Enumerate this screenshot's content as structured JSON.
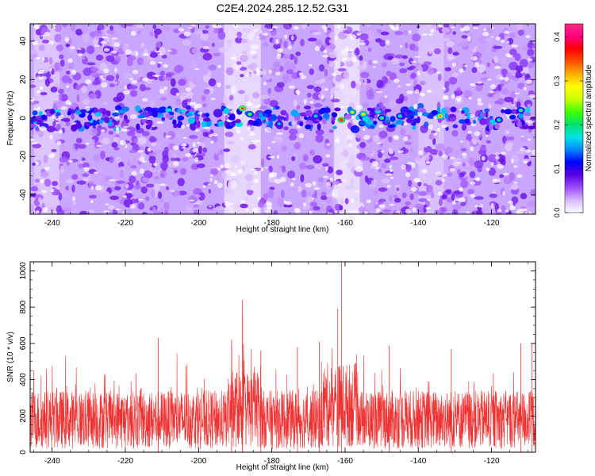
{
  "title": "C2E4.2024.285.12.52.G31",
  "chart_data": [
    {
      "type": "heatmap",
      "xlabel": "Height of straight line (km)",
      "ylabel": "Frequency (Hz)",
      "xlim": [
        -246,
        -108
      ],
      "ylim": [
        -50,
        49
      ],
      "xticks": [
        -240,
        -220,
        -200,
        -180,
        -160,
        -140,
        -120
      ],
      "yticks": [
        -40,
        -20,
        0,
        20,
        40
      ],
      "colorbar": {
        "label": "Normalized spectral amplitude",
        "range": [
          0,
          0.43
        ],
        "ticks": [
          0.0,
          0.1,
          0.2,
          0.3,
          0.4
        ],
        "tick_labels": [
          "0.0",
          "0.1",
          "0.2",
          "0.3",
          "0.4"
        ],
        "colormap": [
          "#ffffff",
          "#d9b8ff",
          "#9a4cff",
          "#5a00e0",
          "#0000ff",
          "#0088ff",
          "#00e5e5",
          "#00e070",
          "#40ff00",
          "#c8ff00",
          "#ffff00",
          "#ffb000",
          "#ff5000",
          "#ff0000",
          "#ff0080",
          "#ff2a80"
        ]
      },
      "features": [
        {
          "description_free": true,
          "band_center_hz": 0,
          "band_halfwidth_hz": 5
        }
      ],
      "hotspots": [
        {
          "x": -188,
          "y": 5,
          "value": 0.38
        },
        {
          "x": -161,
          "y": -1,
          "value": 0.42
        },
        {
          "x": -155,
          "y": 2,
          "value": 0.3
        },
        {
          "x": -134,
          "y": 1,
          "value": 0.33
        },
        {
          "x": -186,
          "y": 2,
          "value": 0.25
        },
        {
          "x": -158,
          "y": 3,
          "value": 0.28
        },
        {
          "x": -150,
          "y": 0,
          "value": 0.22
        },
        {
          "x": -145,
          "y": 1,
          "value": 0.2
        },
        {
          "x": -112,
          "y": 4,
          "value": 0.22
        },
        {
          "x": -118,
          "y": -1,
          "value": 0.2
        },
        {
          "x": -168,
          "y": 1,
          "value": 0.18
        },
        {
          "x": -178,
          "y": -3,
          "value": 0.17
        }
      ]
    },
    {
      "type": "line",
      "xlabel": "Height of straight line (km)",
      "ylabel": "SNR (10 * v/v)",
      "xlim": [
        -246,
        -108
      ],
      "ylim": [
        0,
        1050
      ],
      "xticks": [
        -240,
        -220,
        -200,
        -180,
        -160,
        -140,
        -120
      ],
      "yticks": [
        0,
        200,
        400,
        600,
        800,
        1000
      ],
      "color": "#ee3333",
      "baseline_approx": 180,
      "peaks": [
        {
          "x": -161,
          "y": 1050
        },
        {
          "x": -188,
          "y": 840
        },
        {
          "x": -162,
          "y": 790
        },
        {
          "x": -191,
          "y": 620
        },
        {
          "x": -211,
          "y": 630
        },
        {
          "x": -167,
          "y": 610
        },
        {
          "x": -188,
          "y": 760
        },
        {
          "x": -173,
          "y": 580
        },
        {
          "x": -148,
          "y": 590
        },
        {
          "x": -131,
          "y": 570
        },
        {
          "x": -112,
          "y": 600
        },
        {
          "x": -109,
          "y": 600
        },
        {
          "x": -183,
          "y": 560
        }
      ]
    }
  ]
}
